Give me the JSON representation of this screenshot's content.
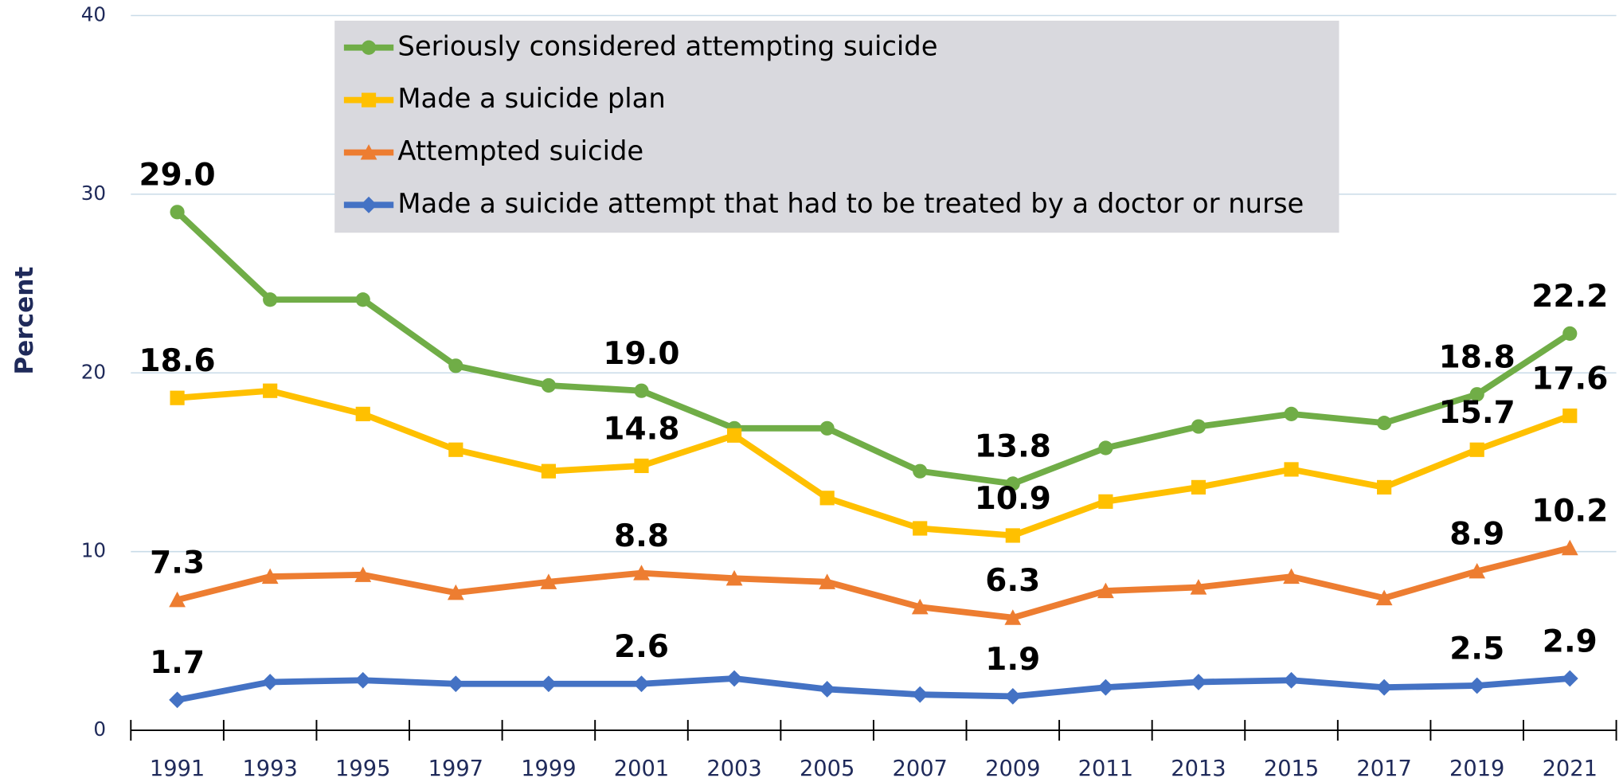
{
  "chart_data": {
    "type": "line",
    "y_label": "Percent",
    "categories": [
      "1991",
      "1993",
      "1995",
      "1997",
      "1999",
      "2001",
      "2003",
      "2005",
      "2007",
      "2009",
      "2011",
      "2013",
      "2015",
      "2017",
      "2019",
      "2021"
    ],
    "ylim": [
      0,
      40
    ],
    "yticks": [
      0,
      10,
      20,
      30,
      40
    ],
    "grid": true,
    "legend": "top",
    "series": [
      {
        "name": "Seriously considered attempting suicide",
        "color": "#70ad47",
        "marker": "circle",
        "values": [
          29.0,
          24.1,
          24.1,
          20.4,
          19.3,
          19.0,
          16.9,
          16.9,
          14.5,
          13.8,
          15.8,
          17.0,
          17.7,
          17.2,
          18.8,
          22.2
        ],
        "value_labels": [
          "29.0",
          null,
          null,
          null,
          null,
          "19.0",
          null,
          null,
          null,
          "13.8",
          null,
          null,
          null,
          null,
          "18.8",
          "22.2"
        ]
      },
      {
        "name": "Made a suicide plan",
        "color": "#ffc000",
        "marker": "square",
        "values": [
          18.6,
          19.0,
          17.7,
          15.7,
          14.5,
          14.8,
          16.5,
          13.0,
          11.3,
          10.9,
          12.8,
          13.6,
          14.6,
          13.6,
          15.7,
          17.6
        ],
        "value_labels": [
          "18.6",
          null,
          null,
          null,
          null,
          "14.8",
          null,
          null,
          null,
          "10.9",
          null,
          null,
          null,
          null,
          "15.7",
          "17.6"
        ]
      },
      {
        "name": "Attempted suicide",
        "color": "#ed7d31",
        "marker": "triangle",
        "values": [
          7.3,
          8.6,
          8.7,
          7.7,
          8.3,
          8.8,
          8.5,
          8.3,
          6.9,
          6.3,
          7.8,
          8.0,
          8.6,
          7.4,
          8.9,
          10.2
        ],
        "value_labels": [
          "7.3",
          null,
          null,
          null,
          null,
          "8.8",
          null,
          null,
          null,
          "6.3",
          null,
          null,
          null,
          null,
          "8.9",
          "10.2"
        ]
      },
      {
        "name": "Made a suicide attempt that had to be treated by a doctor or nurse",
        "color": "#4472c4",
        "marker": "diamond",
        "values": [
          1.7,
          2.7,
          2.8,
          2.6,
          2.6,
          2.6,
          2.9,
          2.3,
          2.0,
          1.9,
          2.4,
          2.7,
          2.8,
          2.4,
          2.5,
          2.9
        ],
        "value_labels": [
          "1.7",
          null,
          null,
          null,
          null,
          "2.6",
          null,
          null,
          null,
          "1.9",
          null,
          null,
          null,
          null,
          "2.5",
          "2.9"
        ]
      }
    ]
  }
}
